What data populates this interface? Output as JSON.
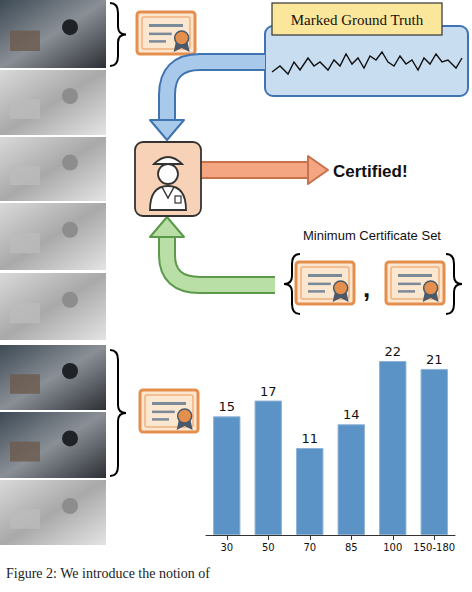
{
  "diagram": {
    "top_label": "Marked Ground Truth",
    "output": "Certified!",
    "set_label": "Minimum Certificate Set",
    "separator": ","
  },
  "caption": "Figure 2: We introduce the notion of",
  "chart_data": {
    "type": "bar",
    "categories": [
      "30",
      "50",
      "70",
      "85",
      "100",
      "150-180"
    ],
    "values": [
      15,
      17,
      11,
      14,
      22,
      21
    ],
    "color": "#5c93c6",
    "ylim": [
      0,
      22
    ],
    "data_labels": true,
    "tick_labels": "x"
  }
}
